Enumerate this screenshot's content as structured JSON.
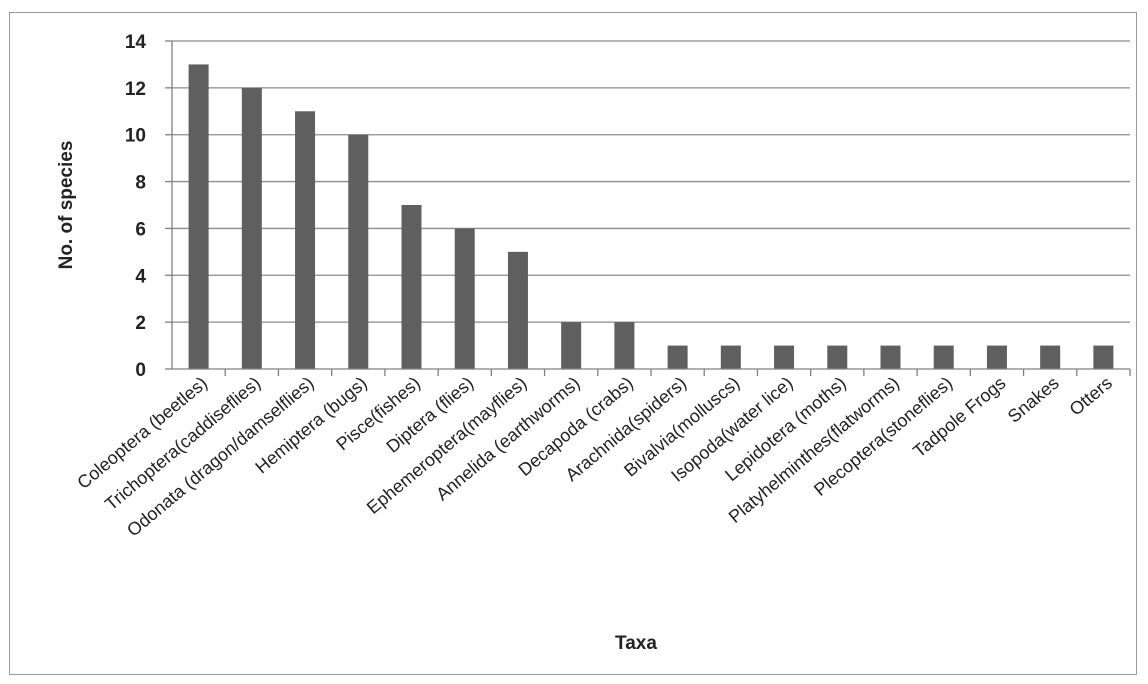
{
  "chart_data": {
    "type": "bar",
    "title": "",
    "xlabel": "Taxa",
    "ylabel": "No. of species",
    "ylim": [
      0,
      14
    ],
    "yticks": [
      "0",
      "2",
      "4",
      "6",
      "8",
      "10",
      "12",
      "14"
    ],
    "grid": true,
    "legend": "none",
    "bar_color": "#5f5f5f",
    "grid_color": "#8c8c8c",
    "categories": [
      "Coleoptera (beetles)",
      "Trichoptera(caddiseflies)",
      "Odonata (dragon/damselflies)",
      "Hemiptera (bugs)",
      "Pisce(fishes)",
      "Diptera (flies)",
      "Ephemeroptera(mayflies)",
      "Annelida (earthworms)",
      "Decapoda (crabs)",
      "Arachnida(spiders)",
      "Bivalvia(molluscs)",
      "Isopoda(water lice)",
      "Lepidotera (moths)",
      "Platyhelminthes(flatworms)",
      "Plecoptera(stoneflies)",
      "Tadpole Frogs",
      "Snakes",
      "Otters"
    ],
    "values": [
      13,
      12,
      11,
      10,
      7,
      6,
      5,
      2,
      2,
      1,
      1,
      1,
      1,
      1,
      1,
      1,
      1,
      1
    ]
  }
}
